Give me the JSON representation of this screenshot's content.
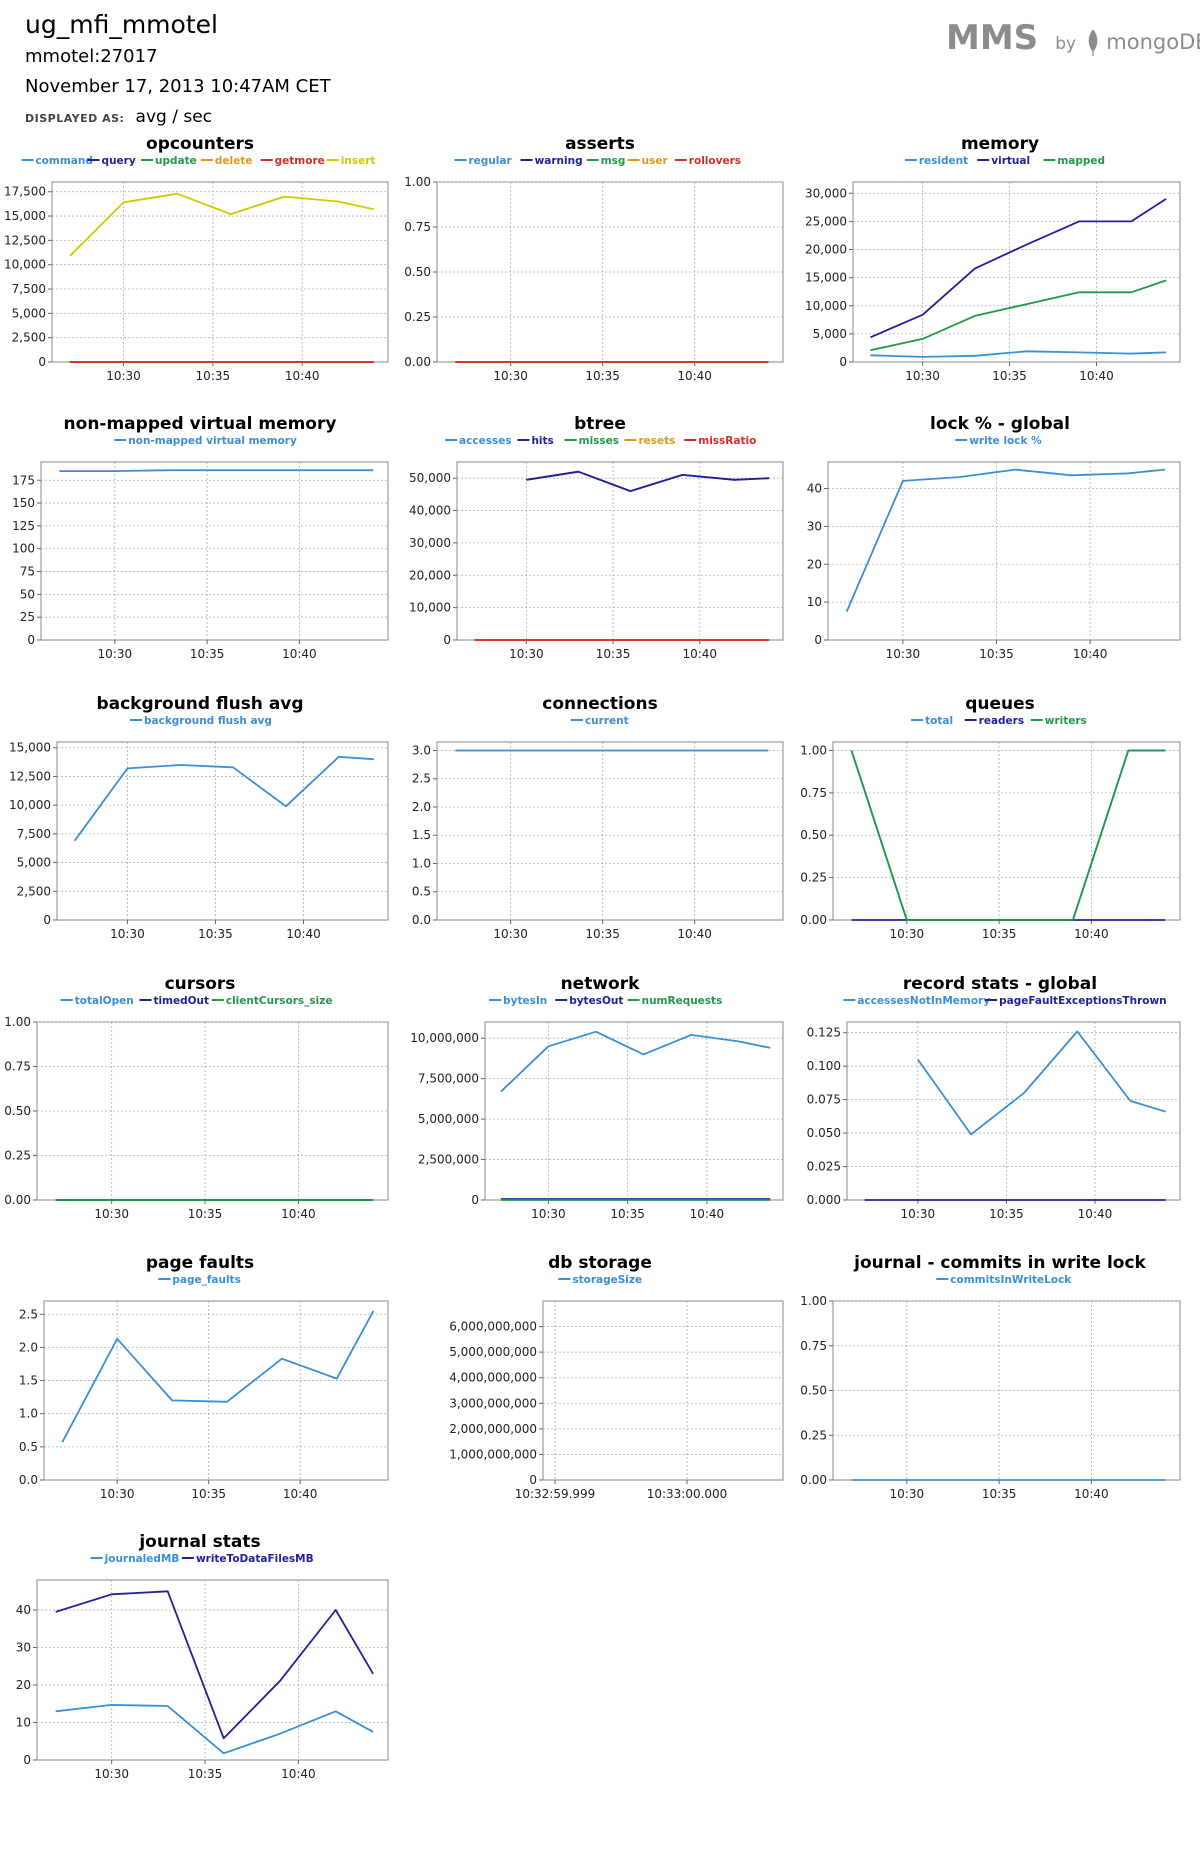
{
  "header": {
    "group": "ug_mfi_mmotel",
    "host": "mmotel:27017",
    "timestamp": "November 17, 2013 10:47AM CET",
    "displayed_as_label": "DISPLAYED AS:",
    "displayed_as_value": "avg / sec"
  },
  "brand": {
    "mms": "MMS",
    "by": "by",
    "mongodb": "mongoDB"
  },
  "colors": {
    "blue": "#3a8fd6",
    "navy": "#22209a",
    "green": "#1f9a4a",
    "orange": "#e39717",
    "red": "#d62b2b",
    "yellow": "#cccc00",
    "grid": "#aaaaaa"
  },
  "chart_data": [
    {
      "title": "opcounters",
      "type": "line",
      "x": [
        "10:27",
        "10:30",
        "10:33",
        "10:36",
        "10:39",
        "10:42",
        "10:44"
      ],
      "xticks": [
        "10:30",
        "10:35",
        "10:40"
      ],
      "ylim": [
        0,
        18500
      ],
      "yticks": [
        "0",
        "2,500",
        "5,000",
        "7,500",
        "10,000",
        "12,500",
        "15,000",
        "17,500"
      ],
      "ytick_values": [
        0,
        2500,
        5000,
        7500,
        10000,
        12500,
        15000,
        17500
      ],
      "series": [
        {
          "name": "command",
          "color": "#3a8fd6",
          "values": [
            0,
            0,
            0,
            0,
            0,
            0,
            0
          ]
        },
        {
          "name": "query",
          "color": "#22209a",
          "values": [
            0,
            0,
            0,
            0,
            0,
            0,
            0
          ]
        },
        {
          "name": "update",
          "color": "#1f9a4a",
          "values": [
            0,
            0,
            0,
            0,
            0,
            0,
            0
          ]
        },
        {
          "name": "delete",
          "color": "#e39717",
          "values": [
            0,
            0,
            0,
            0,
            0,
            0,
            0
          ]
        },
        {
          "name": "getmore",
          "color": "#d62b2b",
          "values": [
            0,
            0,
            0,
            0,
            0,
            0,
            0
          ]
        },
        {
          "name": "insert",
          "color": "#cccc00",
          "values": [
            10900,
            16400,
            17300,
            15200,
            17000,
            16500,
            15700
          ]
        }
      ]
    },
    {
      "title": "asserts",
      "type": "line",
      "x": [
        "10:27",
        "10:30",
        "10:33",
        "10:36",
        "10:39",
        "10:42",
        "10:44"
      ],
      "xticks": [
        "10:30",
        "10:35",
        "10:40"
      ],
      "ylim": [
        0,
        1.0
      ],
      "yticks": [
        "0.00",
        "0.25",
        "0.50",
        "0.75",
        "1.00"
      ],
      "ytick_values": [
        0,
        0.25,
        0.5,
        0.75,
        1.0
      ],
      "series": [
        {
          "name": "regular",
          "color": "#3a8fd6",
          "values": [
            0,
            0,
            0,
            0,
            0,
            0,
            0
          ]
        },
        {
          "name": "warning",
          "color": "#22209a",
          "values": [
            0,
            0,
            0,
            0,
            0,
            0,
            0
          ]
        },
        {
          "name": "msg",
          "color": "#1f9a4a",
          "values": [
            0,
            0,
            0,
            0,
            0,
            0,
            0
          ]
        },
        {
          "name": "user",
          "color": "#e39717",
          "values": [
            0,
            0,
            0,
            0,
            0,
            0,
            0
          ]
        },
        {
          "name": "rollovers",
          "color": "#d62b2b",
          "values": [
            0,
            0,
            0,
            0,
            0,
            0,
            0
          ]
        }
      ]
    },
    {
      "title": "memory",
      "type": "line",
      "x": [
        "10:27",
        "10:30",
        "10:33",
        "10:36",
        "10:39",
        "10:42",
        "10:44"
      ],
      "xticks": [
        "10:30",
        "10:35",
        "10:40"
      ],
      "ylim": [
        0,
        32000
      ],
      "yticks": [
        "0",
        "5,000",
        "10,000",
        "15,000",
        "20,000",
        "25,000",
        "30,000"
      ],
      "ytick_values": [
        0,
        5000,
        10000,
        15000,
        20000,
        25000,
        30000
      ],
      "series": [
        {
          "name": "resident",
          "color": "#3a8fd6",
          "values": [
            1200,
            900,
            1100,
            1900,
            1700,
            1500,
            1700
          ]
        },
        {
          "name": "virtual",
          "color": "#22209a",
          "values": [
            4400,
            8400,
            16600,
            20900,
            25000,
            25000,
            29000
          ]
        },
        {
          "name": "mapped",
          "color": "#1f9a4a",
          "values": [
            2100,
            4100,
            8200,
            10300,
            12400,
            12400,
            14500
          ]
        }
      ]
    },
    {
      "title": "non-mapped virtual memory",
      "type": "line",
      "x": [
        "10:27",
        "10:30",
        "10:33",
        "10:36",
        "10:39",
        "10:42",
        "10:44"
      ],
      "xticks": [
        "10:30",
        "10:35",
        "10:40"
      ],
      "ylim": [
        0,
        195
      ],
      "yticks": [
        "0",
        "25",
        "50",
        "75",
        "100",
        "125",
        "150",
        "175"
      ],
      "ytick_values": [
        0,
        25,
        50,
        75,
        100,
        125,
        150,
        175
      ],
      "series": [
        {
          "name": "non-mapped virtual memory",
          "color": "#3a8fd6",
          "values": [
            185,
            185,
            186,
            186,
            186,
            186,
            186
          ]
        }
      ]
    },
    {
      "title": "btree",
      "type": "line",
      "x": [
        "10:27",
        "10:30",
        "10:33",
        "10:36",
        "10:39",
        "10:42",
        "10:44"
      ],
      "xticks": [
        "10:30",
        "10:35",
        "10:40"
      ],
      "ylim": [
        0,
        55000
      ],
      "yticks": [
        "0",
        "10,000",
        "20,000",
        "30,000",
        "40,000",
        "50,000"
      ],
      "ytick_values": [
        0,
        10000,
        20000,
        30000,
        40000,
        50000
      ],
      "series": [
        {
          "name": "accesses",
          "color": "#3a8fd6",
          "values": [
            null,
            49500,
            52000,
            46000,
            51000,
            49500,
            50000
          ]
        },
        {
          "name": "hits",
          "color": "#22209a",
          "values": [
            null,
            49500,
            52000,
            46000,
            51000,
            49500,
            50000
          ]
        },
        {
          "name": "misses",
          "color": "#1f9a4a",
          "values": [
            0,
            0,
            0,
            0,
            0,
            0,
            0
          ]
        },
        {
          "name": "resets",
          "color": "#e39717",
          "values": [
            0,
            0,
            0,
            0,
            0,
            0,
            0
          ]
        },
        {
          "name": "missRatio",
          "color": "#d62b2b",
          "values": [
            0,
            0,
            0,
            0,
            0,
            0,
            0
          ]
        }
      ]
    },
    {
      "title": "lock % - global",
      "type": "line",
      "x": [
        "10:27",
        "10:30",
        "10:33",
        "10:36",
        "10:39",
        "10:42",
        "10:44"
      ],
      "xticks": [
        "10:30",
        "10:35",
        "10:40"
      ],
      "ylim": [
        0,
        47
      ],
      "yticks": [
        "0",
        "10",
        "20",
        "30",
        "40"
      ],
      "ytick_values": [
        0,
        10,
        20,
        30,
        40
      ],
      "series": [
        {
          "name": "write lock %",
          "color": "#3a8fd6",
          "values": [
            7.5,
            42,
            43,
            45,
            43.5,
            44,
            45
          ]
        }
      ]
    },
    {
      "title": "background flush avg",
      "type": "line",
      "x": [
        "10:27",
        "10:30",
        "10:33",
        "10:36",
        "10:39",
        "10:42",
        "10:44"
      ],
      "xticks": [
        "10:30",
        "10:35",
        "10:40"
      ],
      "ylim": [
        0,
        15500
      ],
      "yticks": [
        "0",
        "2,500",
        "5,000",
        "7,500",
        "10,000",
        "12,500",
        "15,000"
      ],
      "ytick_values": [
        0,
        2500,
        5000,
        7500,
        10000,
        12500,
        15000
      ],
      "series": [
        {
          "name": "background flush avg",
          "color": "#3a8fd6",
          "values": [
            6900,
            13200,
            13500,
            13300,
            9900,
            14200,
            14000
          ]
        }
      ]
    },
    {
      "title": "connections",
      "type": "line",
      "x": [
        "10:27",
        "10:30",
        "10:33",
        "10:36",
        "10:39",
        "10:42",
        "10:44"
      ],
      "xticks": [
        "10:30",
        "10:35",
        "10:40"
      ],
      "ylim": [
        0,
        3.15
      ],
      "yticks": [
        "0.0",
        "0.5",
        "1.0",
        "1.5",
        "2.0",
        "2.5",
        "3.0"
      ],
      "ytick_values": [
        0,
        0.5,
        1.0,
        1.5,
        2.0,
        2.5,
        3.0
      ],
      "series": [
        {
          "name": "current",
          "color": "#3a8fd6",
          "values": [
            3,
            3,
            3,
            3,
            3,
            3,
            3
          ]
        }
      ]
    },
    {
      "title": "queues",
      "type": "line",
      "x": [
        "10:27",
        "10:30",
        "10:33",
        "10:36",
        "10:39",
        "10:42",
        "10:44"
      ],
      "xticks": [
        "10:30",
        "10:35",
        "10:40"
      ],
      "ylim": [
        0,
        1.05
      ],
      "yticks": [
        "0.00",
        "0.25",
        "0.50",
        "0.75",
        "1.00"
      ],
      "ytick_values": [
        0,
        0.25,
        0.5,
        0.75,
        1.0
      ],
      "series": [
        {
          "name": "total",
          "color": "#3a8fd6",
          "values": [
            1,
            0,
            0,
            0,
            0,
            1,
            1
          ]
        },
        {
          "name": "readers",
          "color": "#22209a",
          "values": [
            0,
            0,
            0,
            0,
            0,
            0,
            0
          ]
        },
        {
          "name": "writers",
          "color": "#1f9a4a",
          "values": [
            1,
            0,
            0,
            0,
            0,
            1,
            1
          ]
        }
      ]
    },
    {
      "title": "cursors",
      "type": "line",
      "x": [
        "10:27",
        "10:30",
        "10:33",
        "10:36",
        "10:39",
        "10:42",
        "10:44"
      ],
      "xticks": [
        "10:30",
        "10:35",
        "10:40"
      ],
      "ylim": [
        0,
        1.0
      ],
      "yticks": [
        "0.00",
        "0.25",
        "0.50",
        "0.75",
        "1.00"
      ],
      "ytick_values": [
        0,
        0.25,
        0.5,
        0.75,
        1.0
      ],
      "series": [
        {
          "name": "totalOpen",
          "color": "#3a8fd6",
          "values": [
            0,
            0,
            0,
            0,
            0,
            0,
            0
          ]
        },
        {
          "name": "timedOut",
          "color": "#22209a",
          "values": [
            0,
            0,
            0,
            0,
            0,
            0,
            0
          ]
        },
        {
          "name": "clientCursors_size",
          "color": "#1f9a4a",
          "values": [
            0,
            0,
            0,
            0,
            0,
            0,
            0
          ]
        }
      ]
    },
    {
      "title": "network",
      "type": "line",
      "x": [
        "10:27",
        "10:30",
        "10:33",
        "10:36",
        "10:39",
        "10:42",
        "10:44"
      ],
      "xticks": [
        "10:30",
        "10:35",
        "10:40"
      ],
      "ylim": [
        0,
        11000000
      ],
      "yticks": [
        "0",
        "2,500,000",
        "5,000,000",
        "7,500,000",
        "10,000,000"
      ],
      "ytick_values": [
        0,
        2500000,
        5000000,
        7500000,
        10000000
      ],
      "series": [
        {
          "name": "bytesIn",
          "color": "#3a8fd6",
          "values": [
            6700000,
            9500000,
            10400000,
            9000000,
            10200000,
            9800000,
            9400000
          ]
        },
        {
          "name": "bytesOut",
          "color": "#22209a",
          "values": [
            60000,
            60000,
            60000,
            60000,
            60000,
            60000,
            60000
          ]
        },
        {
          "name": "numRequests",
          "color": "#1f9a4a",
          "values": [
            0,
            0,
            0,
            0,
            0,
            0,
            0
          ]
        }
      ]
    },
    {
      "title": "record stats - global",
      "type": "line",
      "x": [
        "10:27",
        "10:30",
        "10:33",
        "10:36",
        "10:39",
        "10:42",
        "10:44"
      ],
      "xticks": [
        "10:30",
        "10:35",
        "10:40"
      ],
      "ylim": [
        0,
        0.133
      ],
      "yticks": [
        "0.000",
        "0.025",
        "0.050",
        "0.075",
        "0.100",
        "0.125"
      ],
      "ytick_values": [
        0,
        0.025,
        0.05,
        0.075,
        0.1,
        0.125
      ],
      "series": [
        {
          "name": "accessesNotInMemory",
          "color": "#3a8fd6",
          "values": [
            null,
            0.105,
            0.049,
            0.08,
            0.126,
            0.074,
            0.066
          ]
        },
        {
          "name": "pageFaultExceptionsThrown",
          "color": "#22209a",
          "values": [
            0,
            0,
            0,
            0,
            0,
            0,
            0
          ]
        }
      ]
    },
    {
      "title": "page faults",
      "type": "line",
      "x": [
        "10:27",
        "10:30",
        "10:33",
        "10:36",
        "10:39",
        "10:42",
        "10:44"
      ],
      "xticks": [
        "10:30",
        "10:35",
        "10:40"
      ],
      "ylim": [
        0,
        2.7
      ],
      "yticks": [
        "0.0",
        "0.5",
        "1.0",
        "1.5",
        "2.0",
        "2.5"
      ],
      "ytick_values": [
        0,
        0.5,
        1.0,
        1.5,
        2.0,
        2.5
      ],
      "series": [
        {
          "name": "page_faults",
          "color": "#3a8fd6",
          "values": [
            0.57,
            2.13,
            1.2,
            1.18,
            1.83,
            1.53,
            2.55
          ]
        }
      ]
    },
    {
      "title": "db storage",
      "type": "line",
      "x": [
        "10:32:59.999",
        "10:33:00.000"
      ],
      "xticks": [
        "10:32:59.999",
        "10:33:00.000"
      ],
      "ylim": [
        0,
        7000000000
      ],
      "yticks": [
        "0",
        "1,000,000,000",
        "2,000,000,000",
        "3,000,000,000",
        "4,000,000,000",
        "5,000,000,000",
        "6,000,000,000"
      ],
      "ytick_values": [
        0,
        1000000000,
        2000000000,
        3000000000,
        4000000000,
        5000000000,
        6000000000
      ],
      "series": [
        {
          "name": "storageSize",
          "color": "#3a8fd6",
          "values": [
            null,
            null
          ]
        }
      ]
    },
    {
      "title": "journal - commits in write lock",
      "type": "line",
      "x": [
        "10:27",
        "10:30",
        "10:33",
        "10:36",
        "10:39",
        "10:42",
        "10:44"
      ],
      "xticks": [
        "10:30",
        "10:35",
        "10:40"
      ],
      "ylim": [
        0,
        1.0
      ],
      "yticks": [
        "0.00",
        "0.25",
        "0.50",
        "0.75",
        "1.00"
      ],
      "ytick_values": [
        0,
        0.25,
        0.5,
        0.75,
        1.0
      ],
      "series": [
        {
          "name": "commitsInWriteLock",
          "color": "#3a8fd6",
          "values": [
            0,
            0,
            0,
            0,
            0,
            0,
            0
          ]
        }
      ]
    },
    {
      "title": "journal stats",
      "type": "line",
      "x": [
        "10:27",
        "10:30",
        "10:33",
        "10:36",
        "10:39",
        "10:42",
        "10:44"
      ],
      "xticks": [
        "10:30",
        "10:35",
        "10:40"
      ],
      "ylim": [
        0,
        48
      ],
      "yticks": [
        "0",
        "10",
        "20",
        "30",
        "40"
      ],
      "ytick_values": [
        0,
        10,
        20,
        30,
        40
      ],
      "series": [
        {
          "name": "journaledMB",
          "color": "#3a8fd6",
          "values": [
            13,
            14.7,
            14.4,
            1.8,
            7,
            13,
            7.5
          ]
        },
        {
          "name": "writeToDataFilesMB",
          "color": "#22209a",
          "values": [
            39.5,
            44.2,
            45,
            5.8,
            21,
            40,
            23
          ]
        }
      ]
    }
  ]
}
